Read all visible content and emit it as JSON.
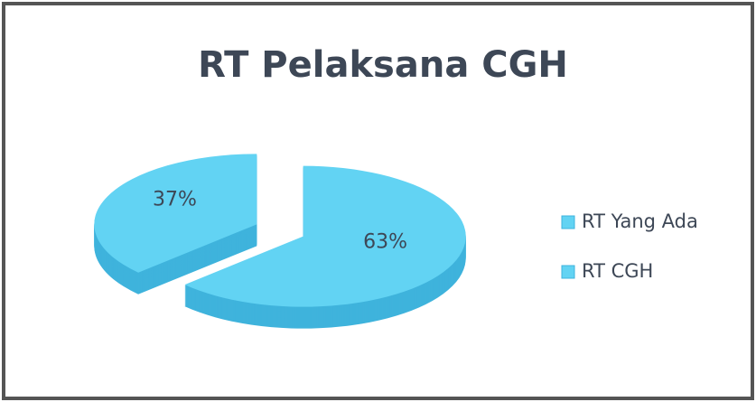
{
  "chart_data": {
    "type": "pie",
    "title": "RT Pelaksana CGH",
    "categories": [
      "RT Yang Ada",
      "RT CGH"
    ],
    "values": [
      63,
      37
    ],
    "value_labels": [
      "63%",
      "37%"
    ],
    "colors": [
      "#62d3f3",
      "#62d3f3"
    ],
    "legend": "right"
  }
}
